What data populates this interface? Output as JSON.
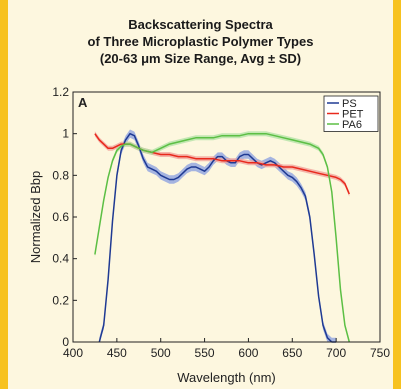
{
  "chart_data": {
    "type": "line",
    "title_lines": [
      "Backscattering Spectra",
      "of Three Microplastic Polymer Types",
      "(20-63 μm Size Range, Avg ± SD)"
    ],
    "panel_label": "A",
    "xlabel": "Wavelength (nm)",
    "ylabel": "Normalized Bbp",
    "xlim": [
      400,
      750
    ],
    "ylim": [
      0,
      1.2
    ],
    "x_ticks": [
      400,
      450,
      500,
      550,
      600,
      650,
      700,
      750
    ],
    "y_ticks": [
      0,
      0.2,
      0.4,
      0.6,
      0.8,
      1,
      1.2
    ],
    "y_tick_labels": [
      "0",
      "0.2",
      "0.4",
      "0.6",
      "0.8",
      "1",
      "1.2"
    ],
    "legend_position": "top-right",
    "series": [
      {
        "name": "PS",
        "color": "#1f3a93",
        "band_color": "#8fa2e0",
        "x": [
          430,
          435,
          440,
          445,
          450,
          455,
          460,
          465,
          470,
          475,
          480,
          485,
          490,
          495,
          500,
          505,
          510,
          515,
          520,
          525,
          530,
          535,
          540,
          545,
          550,
          555,
          560,
          565,
          570,
          575,
          580,
          585,
          590,
          595,
          600,
          605,
          610,
          615,
          620,
          625,
          630,
          635,
          640,
          645,
          650,
          655,
          660,
          665,
          670,
          675,
          680,
          685,
          690,
          695,
          700
        ],
        "y": [
          0.0,
          0.08,
          0.3,
          0.58,
          0.8,
          0.92,
          0.97,
          1.0,
          0.99,
          0.94,
          0.88,
          0.84,
          0.83,
          0.82,
          0.8,
          0.79,
          0.78,
          0.78,
          0.79,
          0.81,
          0.83,
          0.84,
          0.84,
          0.83,
          0.82,
          0.84,
          0.87,
          0.89,
          0.89,
          0.87,
          0.86,
          0.86,
          0.89,
          0.9,
          0.9,
          0.88,
          0.86,
          0.85,
          0.86,
          0.87,
          0.86,
          0.84,
          0.82,
          0.8,
          0.79,
          0.77,
          0.74,
          0.7,
          0.6,
          0.42,
          0.22,
          0.08,
          0.02,
          0.0,
          0.0
        ],
        "sd": 0.02
      },
      {
        "name": "PET",
        "color": "#e8291c",
        "band_color": "#f1a49c",
        "x": [
          425,
          430,
          435,
          440,
          445,
          450,
          455,
          460,
          465,
          470,
          480,
          490,
          500,
          510,
          520,
          530,
          540,
          550,
          560,
          570,
          580,
          590,
          600,
          610,
          620,
          630,
          640,
          650,
          660,
          670,
          680,
          690,
          700,
          705,
          710,
          715
        ],
        "y": [
          1.0,
          0.97,
          0.95,
          0.93,
          0.93,
          0.94,
          0.95,
          0.95,
          0.95,
          0.94,
          0.92,
          0.91,
          0.9,
          0.9,
          0.89,
          0.89,
          0.88,
          0.88,
          0.88,
          0.87,
          0.87,
          0.87,
          0.86,
          0.86,
          0.85,
          0.85,
          0.84,
          0.84,
          0.83,
          0.82,
          0.81,
          0.8,
          0.79,
          0.78,
          0.76,
          0.71
        ],
        "sd": 0.012
      },
      {
        "name": "PA6",
        "color": "#5cbf44",
        "band_color": "#b4e2a6",
        "x": [
          425,
          430,
          435,
          440,
          445,
          450,
          455,
          460,
          465,
          470,
          480,
          490,
          500,
          510,
          520,
          530,
          540,
          550,
          560,
          570,
          580,
          590,
          600,
          610,
          620,
          630,
          640,
          650,
          660,
          670,
          680,
          685,
          690,
          695,
          700,
          705,
          710,
          715
        ],
        "y": [
          0.42,
          0.55,
          0.68,
          0.79,
          0.87,
          0.92,
          0.94,
          0.95,
          0.95,
          0.94,
          0.92,
          0.91,
          0.93,
          0.95,
          0.96,
          0.97,
          0.98,
          0.98,
          0.98,
          0.99,
          0.99,
          0.99,
          1.0,
          1.0,
          1.0,
          0.99,
          0.98,
          0.97,
          0.96,
          0.95,
          0.93,
          0.9,
          0.84,
          0.72,
          0.5,
          0.25,
          0.08,
          0.0
        ],
        "sd": 0.012
      }
    ]
  }
}
